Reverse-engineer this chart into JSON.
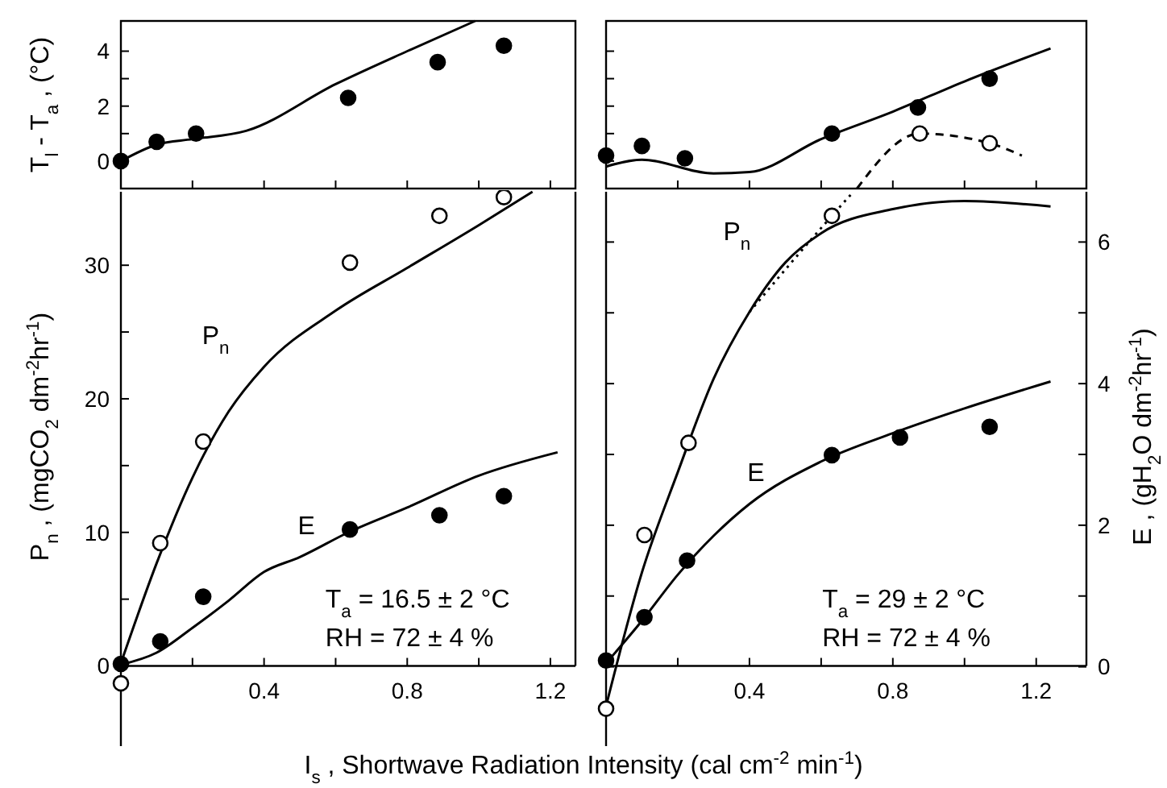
{
  "chart_data": [
    {
      "type": "line",
      "ylabel": "T$_{l}$ - T$_{a}$ , (°C)",
      "xlim": [
        0,
        1.27
      ],
      "ylim": [
        -1,
        5.1
      ],
      "tick_labels": "y",
      "xticks": [
        {
          "value": 0,
          "label": null
        },
        {
          "value": 0.2,
          "label": null
        },
        0.4,
        {
          "value": 0.6,
          "label": null
        },
        0.8,
        {
          "value": 1.0,
          "label": null
        },
        1.2
      ],
      "yticks": [
        0,
        {
          "value": 1,
          "label": null
        },
        2,
        {
          "value": 3,
          "label": null
        },
        4
      ],
      "series": [
        {
          "color": "#000000",
          "line_style": "solid",
          "x": [
            0,
            0.1,
            0.2,
            0.35,
            0.6,
            0.8,
            0.99
          ],
          "values": [
            0,
            0.6,
            0.8,
            1.1,
            2.8,
            4.0,
            5.1
          ]
        },
        {
          "type": "scatter",
          "color": "#000000",
          "marker": "circle",
          "x": [
            0,
            0.1,
            0.21,
            0.635,
            0.885,
            1.07
          ],
          "values": [
            0,
            0.7,
            1.0,
            2.3,
            3.6,
            4.2
          ]
        }
      ]
    },
    {
      "type": "line",
      "xlim": [
        0,
        1.34
      ],
      "ylim": [
        -1,
        5.1
      ],
      "tick_labels": false,
      "xticks": [
        {
          "value": 0,
          "label": null
        },
        {
          "value": 0.2,
          "label": null
        },
        0.4,
        {
          "value": 0.6,
          "label": null
        },
        0.8,
        {
          "value": 1.0,
          "label": null
        },
        1.2
      ],
      "yticks": [
        0,
        {
          "value": 1,
          "label": null
        },
        2,
        {
          "value": 3,
          "label": null
        },
        4
      ],
      "series": [
        {
          "color": "#000000",
          "line_style": "solid",
          "x": [
            0,
            0.1,
            0.3,
            0.4,
            0.6,
            0.8,
            1.0,
            1.24
          ],
          "values": [
            -0.2,
            0.05,
            -0.45,
            -0.4,
            0.8,
            1.8,
            2.9,
            4.1
          ]
        },
        {
          "color": "#000000",
          "line_style": "dashed",
          "x": [
            0.7,
            0.875,
            1.07,
            1.16
          ],
          "values": [
            -1,
            1.0,
            0.65,
            0.2
          ]
        },
        {
          "type": "scatter",
          "color": "#000000",
          "marker": "circle",
          "x": [
            0,
            0.1,
            0.22,
            0.63,
            0.87,
            1.07
          ],
          "values": [
            0.2,
            0.55,
            0.1,
            1.0,
            1.95,
            3.0
          ]
        },
        {
          "type": "scatter",
          "color": "#ffffff",
          "marker": "circle",
          "x": [
            0.875,
            1.07
          ],
          "values": [
            1.0,
            0.65
          ]
        }
      ]
    },
    {
      "type": "line",
      "ylabel": "P$_{n}$ ,   (mgCO$_{2}$ dm$^{-2}$hr$^{-1}$)",
      "xlabel": "I$_{s}$ ,   Shortwave Radiation Intensity   (cal cm$^{-2}$ min$^{-1}$)",
      "xlim": [
        0,
        1.27
      ],
      "ylim": [
        -6,
        35.5
      ],
      "y2lim": [
        -1.12,
        6.71
      ],
      "xticks": [
        {
          "value": 0,
          "label": null
        },
        {
          "value": 0.2,
          "label": null
        },
        0.4,
        {
          "value": 0.6,
          "label": null
        },
        0.8,
        {
          "value": 1.0,
          "label": null
        },
        1.2
      ],
      "yticks": [
        0,
        {
          "value": 5,
          "label": null
        },
        10,
        {
          "value": 15,
          "label": null
        },
        20,
        {
          "value": 25,
          "label": null
        },
        30
      ],
      "annotations": [
        "T$_{a}$ = 16.5 ± 2 °C",
        "RH = 72 ± 4 %"
      ],
      "series": [
        {
          "name": "P$_{n}$",
          "color": "#000000",
          "line_style": "solid",
          "x": [
            0,
            0.1,
            0.2,
            0.3,
            0.4,
            0.6,
            0.8,
            1.0,
            1.15
          ],
          "values": [
            0.2,
            7.7,
            14.1,
            19,
            22.4,
            26.6,
            29.8,
            33,
            35.5
          ]
        },
        {
          "name": "E",
          "axis": "y2",
          "color": "#000000",
          "line_style": "solid",
          "x": [
            0,
            0.1,
            0.2,
            0.3,
            0.4,
            0.5,
            0.64,
            0.8,
            1.0,
            1.22
          ],
          "values": [
            0.03,
            0.2,
            0.55,
            0.93,
            1.34,
            1.55,
            1.91,
            2.25,
            2.7,
            3.03
          ]
        },
        {
          "type": "scatter",
          "color": "#ffffff",
          "marker": "circle",
          "x": [
            0,
            0.11,
            0.23,
            0.64,
            0.89,
            1.07
          ],
          "values": [
            -1.3,
            9.2,
            16.8,
            30.2,
            33.7,
            35.1
          ]
        },
        {
          "type": "scatter",
          "axis": "y2",
          "color": "#000000",
          "marker": "circle",
          "x": [
            0,
            0.11,
            0.23,
            0.64,
            0.89,
            1.07
          ],
          "values": [
            0.04,
            0.36,
            0.99,
            1.94,
            2.14,
            2.41
          ]
        }
      ]
    },
    {
      "type": "line",
      "y2label": "E ,   (gH$_{2}$O dm$^{-2}$hr$^{-1}$)",
      "xlim": [
        0,
        1.34
      ],
      "ylim": [
        -6,
        35.5
      ],
      "y2lim": [
        -1.12,
        6.71
      ],
      "xticks": [
        {
          "value": 0,
          "label": null
        },
        {
          "value": 0.2,
          "label": null
        },
        0.4,
        {
          "value": 0.6,
          "label": null
        },
        0.8,
        {
          "value": 1.0,
          "label": null
        },
        1.2
      ],
      "y2ticks": [
        0,
        {
          "value": 1,
          "label": null
        },
        2,
        {
          "value": 3,
          "label": null
        },
        4,
        {
          "value": 5,
          "label": null
        },
        6
      ],
      "annotations": [
        "T$_{a}$ = 29 ± 2 °C",
        "RH = 72 ± 4 %"
      ],
      "series": [
        {
          "name": "P$_{n}$",
          "color": "#000000",
          "line_style": "solid",
          "x": [
            0,
            0.1,
            0.2,
            0.3,
            0.4,
            0.5,
            0.6,
            0.8,
            1.0,
            1.24
          ],
          "values": [
            -3.0,
            7,
            14.5,
            21.5,
            26.5,
            30.2,
            32.4,
            34.2,
            34.8,
            34.4
          ]
        },
        {
          "color": "#000000",
          "line_style": "dotted",
          "x": [
            0.4,
            0.63,
            0.69
          ],
          "values": [
            26.5,
            33.7,
            35.5
          ]
        },
        {
          "name": "E",
          "axis": "y2",
          "color": "#000000",
          "line_style": "solid",
          "x": [
            0,
            0.1,
            0.2,
            0.3,
            0.4,
            0.6,
            0.8,
            1.0,
            1.24
          ],
          "values": [
            0.05,
            0.65,
            1.3,
            1.85,
            2.3,
            2.9,
            3.3,
            3.65,
            4.03
          ]
        },
        {
          "type": "scatter",
          "color": "#ffffff",
          "marker": "circle",
          "x": [
            0,
            0.107,
            0.23,
            0.63
          ],
          "values": [
            -3.2,
            9.8,
            16.7,
            33.7
          ]
        },
        {
          "type": "scatter",
          "axis": "y2",
          "color": "#000000",
          "marker": "circle",
          "x": [
            0,
            0.107,
            0.226,
            0.63,
            0.82,
            1.07
          ],
          "values": [
            0.09,
            0.7,
            1.5,
            2.99,
            3.24,
            3.39
          ]
        }
      ]
    }
  ]
}
